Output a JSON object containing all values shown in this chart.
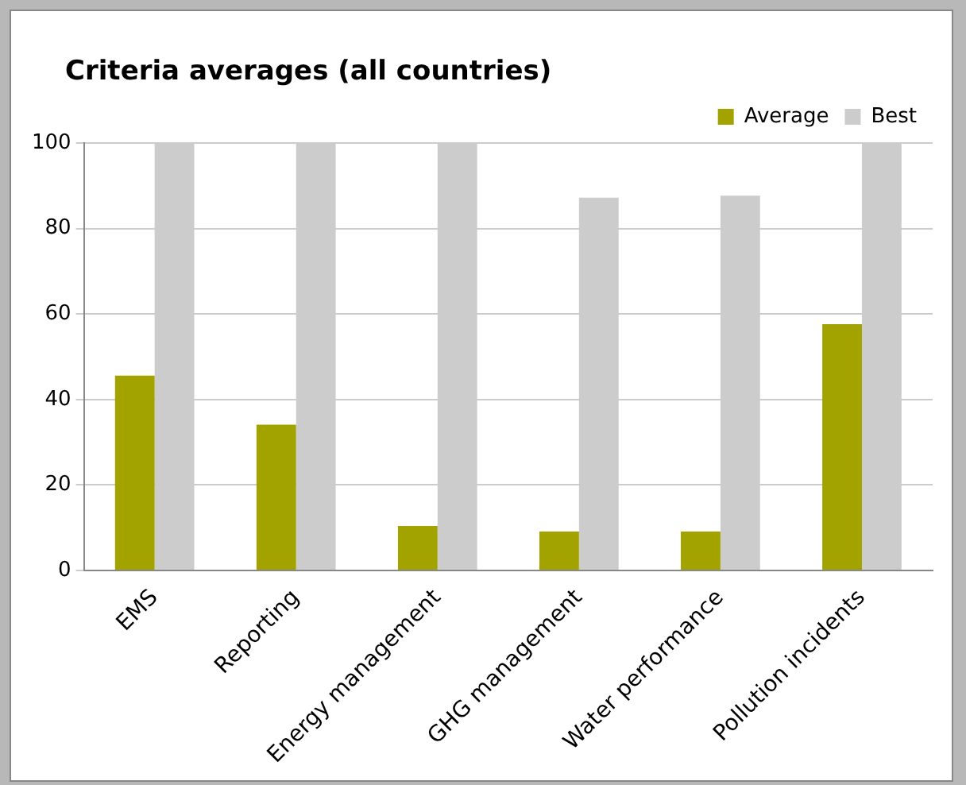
{
  "chart_data": {
    "type": "bar",
    "title": "Criteria averages (all countries)",
    "categories": [
      "EMS",
      "Reporting",
      "Energy management",
      "GHG management",
      "Water performance",
      "Pollution incidents"
    ],
    "series": [
      {
        "name": "Average",
        "color": "#a3a300",
        "values": [
          45.6,
          34.1,
          10.4,
          9.1,
          9.1,
          57.6
        ]
      },
      {
        "name": "Best",
        "color": "#cccccc",
        "values": [
          100,
          100,
          100,
          87.2,
          87.7,
          100
        ]
      }
    ],
    "ylim": [
      0,
      100
    ],
    "yticks": [
      0,
      20,
      40,
      60,
      80,
      100
    ],
    "grid": "y",
    "legend": "top right"
  }
}
